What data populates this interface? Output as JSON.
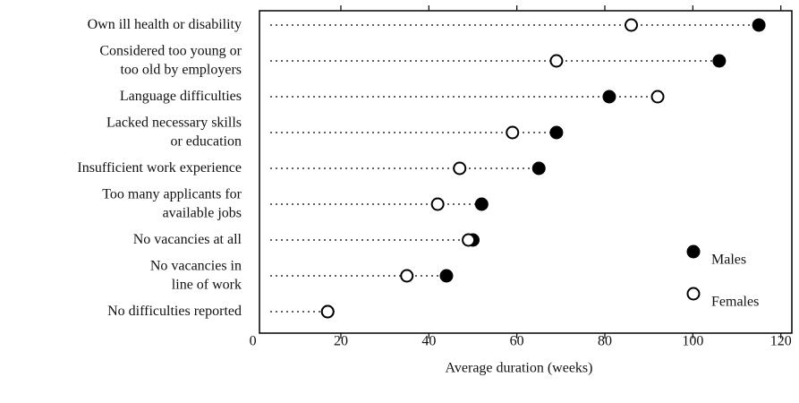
{
  "chart_data": {
    "type": "dot",
    "xlabel": "Average duration (weeks)",
    "categories": [
      "Own ill health or disability",
      "Considered too young or\ntoo old by employers",
      "Language difficulties",
      "Lacked necessary skills\nor education",
      "Insufficient work experience",
      "Too many applicants for\navailable jobs",
      "No vacancies at all",
      "No vacancies in\nline of work",
      "No difficulties reported"
    ],
    "series": [
      {
        "name": "Males",
        "color": "#000000",
        "values": [
          115,
          106,
          81,
          69,
          65,
          52,
          50,
          44,
          17
        ]
      },
      {
        "name": "Females",
        "color": "#ffffff",
        "values": [
          86,
          69,
          92,
          59,
          47,
          42,
          49,
          35,
          17
        ]
      }
    ],
    "xlim": [
      1.5,
      122.5
    ],
    "xticks": [
      0,
      20,
      40,
      60,
      80,
      100,
      120
    ]
  }
}
